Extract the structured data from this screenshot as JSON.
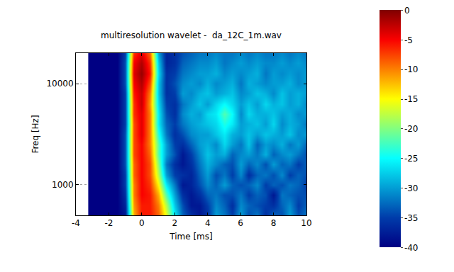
{
  "chart_data": {
    "type": "heatmap",
    "title": "multiresolution wavelet -  da_12C_1m.wav",
    "x_label": "Time [ms]",
    "y_label": "Freq [Hz]",
    "x": [
      -3,
      -2.5,
      -2,
      -1.5,
      -1,
      -0.5,
      0,
      0.5,
      1,
      1.5,
      2,
      2.5,
      3,
      3.5,
      4,
      4.5,
      5,
      5.5,
      6,
      6.5,
      7,
      7.5,
      8,
      8.5,
      9,
      9.5,
      10
    ],
    "y": [
      500,
      630,
      800,
      1000,
      1250,
      1600,
      2000,
      2500,
      3150,
      4000,
      5000,
      6300,
      8000,
      10000,
      12500,
      16000,
      20000
    ],
    "z": [
      [
        -40,
        -40,
        -40,
        -40,
        -38,
        -12,
        -6,
        -6,
        -9,
        -16,
        -26,
        -33,
        -36,
        -38,
        -36,
        -30,
        -32,
        -35,
        -30,
        -34,
        -32,
        -36,
        -33,
        -34,
        -30,
        -34,
        -32
      ],
      [
        -40,
        -40,
        -40,
        -40,
        -37,
        -11,
        -6,
        -6,
        -10,
        -18,
        -28,
        -34,
        -38,
        -38,
        -35,
        -31,
        -33,
        -36,
        -31,
        -33,
        -34,
        -35,
        -36,
        -33,
        -31,
        -35,
        -33
      ],
      [
        -40,
        -40,
        -40,
        -40,
        -36,
        -10,
        -5,
        -6,
        -12,
        -22,
        -30,
        -36,
        -38,
        -36,
        -33,
        -32,
        -34,
        -34,
        -32,
        -35,
        -33,
        -34,
        -38,
        -32,
        -33,
        -34,
        -34
      ],
      [
        -40,
        -40,
        -40,
        -40,
        -35,
        -10,
        -5,
        -7,
        -15,
        -26,
        -32,
        -38,
        -37,
        -34,
        -31,
        -33,
        -30,
        -33,
        -34,
        -33,
        -31,
        -35,
        -33,
        -34,
        -32,
        -33,
        -35
      ],
      [
        -40,
        -40,
        -40,
        -40,
        -35,
        -9,
        -5,
        -8,
        -18,
        -30,
        -35,
        -36,
        -37,
        -33,
        -30,
        -34,
        -32,
        -35,
        -31,
        -36,
        -33,
        -32,
        -34,
        -31,
        -35,
        -33,
        -34
      ],
      [
        -40,
        -40,
        -40,
        -40,
        -34,
        -9,
        -5,
        -8,
        -20,
        -32,
        -36,
        -38,
        -36,
        -32,
        -29,
        -31,
        -33,
        -34,
        -30,
        -33,
        -31,
        -34,
        -30,
        -33,
        -32,
        -35,
        -33
      ],
      [
        -40,
        -40,
        -40,
        -40,
        -34,
        -8,
        -5,
        -9,
        -22,
        -30,
        -34,
        -38,
        -35,
        -31,
        -28,
        -30,
        -29,
        -33,
        -31,
        -30,
        -32,
        -29,
        -33,
        -31,
        -30,
        -32,
        -34
      ],
      [
        -40,
        -40,
        -40,
        -40,
        -34,
        -8,
        -5,
        -10,
        -22,
        -30,
        -35,
        -36,
        -33,
        -30,
        -29,
        -31,
        -27,
        -30,
        -32,
        -28,
        -33,
        -30,
        -31,
        -29,
        -32,
        -30,
        -33
      ],
      [
        -40,
        -40,
        -40,
        -40,
        -34,
        -8,
        -4,
        -10,
        -24,
        -32,
        -36,
        -34,
        -31,
        -30,
        -30,
        -28,
        -26,
        -29,
        -30,
        -28,
        -30,
        -28,
        -29,
        -30,
        -28,
        -31,
        -30
      ],
      [
        -40,
        -40,
        -40,
        -40,
        -35,
        -8,
        -4,
        -10,
        -26,
        -33,
        -35,
        -32,
        -30,
        -29,
        -28,
        -27,
        -24,
        -26,
        -30,
        -29,
        -28,
        -30,
        -27,
        -31,
        -29,
        -30,
        -32
      ],
      [
        -40,
        -40,
        -40,
        -40,
        -35,
        -7,
        -4,
        -10,
        -26,
        -34,
        -36,
        -31,
        -29,
        -30,
        -27,
        -26,
        -22,
        -25,
        -31,
        -27,
        -29,
        -29,
        -28,
        -30,
        -29,
        -31,
        -30
      ],
      [
        -40,
        -40,
        -40,
        -40,
        -35,
        -7,
        -3,
        -11,
        -27,
        -35,
        -36,
        -32,
        -30,
        -28,
        -30,
        -27,
        -25,
        -27,
        -30,
        -28,
        -30,
        -27,
        -29,
        -28,
        -30,
        -29,
        -31
      ],
      [
        -40,
        -40,
        -40,
        -40,
        -35,
        -6,
        -3,
        -10,
        -28,
        -36,
        -35,
        -30,
        -31,
        -29,
        -28,
        -30,
        -29,
        -28,
        -31,
        -30,
        -28,
        -29,
        -31,
        -28,
        -30,
        -29,
        -30
      ],
      [
        -40,
        -40,
        -40,
        -40,
        -34,
        -5,
        -2,
        -8,
        -28,
        -36,
        -34,
        -31,
        -30,
        -31,
        -29,
        -31,
        -30,
        -29,
        -32,
        -29,
        -30,
        -31,
        -30,
        -30,
        -29,
        -31,
        -30
      ],
      [
        -40,
        -40,
        -40,
        -40,
        -34,
        -4,
        -1,
        -6,
        -27,
        -36,
        -35,
        -32,
        -31,
        -30,
        -30,
        -29,
        -31,
        -30,
        -31,
        -30,
        -29,
        -32,
        -30,
        -31,
        -30,
        -31,
        -30
      ],
      [
        -40,
        -40,
        -40,
        -40,
        -34,
        -5,
        -2,
        -7,
        -28,
        -37,
        -36,
        -33,
        -32,
        -31,
        -31,
        -30,
        -32,
        -31,
        -30,
        -31,
        -30,
        -31,
        -31,
        -30,
        -31,
        -30,
        -31
      ],
      [
        -40,
        -40,
        -40,
        -40,
        -35,
        -7,
        -4,
        -9,
        -30,
        -37,
        -36,
        -34,
        -33,
        -32,
        -32,
        -31,
        -32,
        -32,
        -31,
        -32,
        -31,
        -32,
        -32,
        -31,
        -32,
        -31,
        -32
      ]
    ],
    "xlim": [
      -4,
      10
    ],
    "xticks": [
      -4,
      -2,
      0,
      2,
      4,
      6,
      8,
      10
    ],
    "ylim": [
      500,
      20000
    ],
    "yticks": [
      1000,
      10000
    ],
    "log": "y",
    "grid": true,
    "colorbar": {
      "range": [
        -40,
        0
      ],
      "ticks": [
        0,
        -5,
        -10,
        -15,
        -20,
        -25,
        -30,
        -35,
        -40
      ]
    }
  }
}
